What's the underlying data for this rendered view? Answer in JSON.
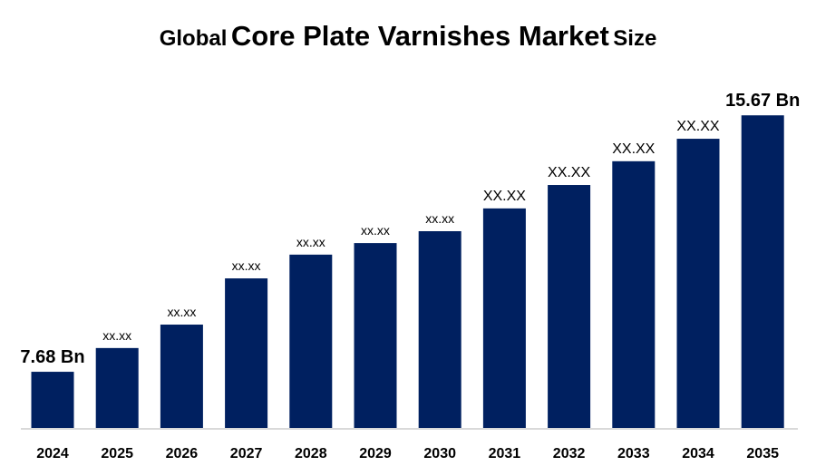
{
  "chart_data": {
    "type": "bar",
    "title": {
      "prefix": "Global",
      "main": "Core Plate Varnishes Market",
      "suffix": "Size"
    },
    "categories": [
      "2024",
      "2025",
      "2026",
      "2027",
      "2028",
      "2029",
      "2030",
      "2031",
      "2032",
      "2033",
      "2034",
      "2035"
    ],
    "values": [
      7.68,
      8.42,
      9.15,
      10.59,
      11.33,
      11.69,
      12.06,
      12.77,
      13.5,
      14.24,
      14.94,
      15.67
    ],
    "data_labels": [
      "7.68 Bn",
      "xx.xx",
      "xx.xx",
      "xx.xx",
      "xx.xx",
      "xx.xx",
      "xx.xx",
      "XX.XX",
      "XX.XX",
      "XX.XX",
      "XX.XX",
      "15.67 Bn"
    ],
    "xlabel": "",
    "ylabel": "",
    "ylim": [
      5.93,
      16.5
    ],
    "grid": false,
    "legend": "none",
    "bar_color": "#002060",
    "axis_color": "#d9d9d9"
  }
}
